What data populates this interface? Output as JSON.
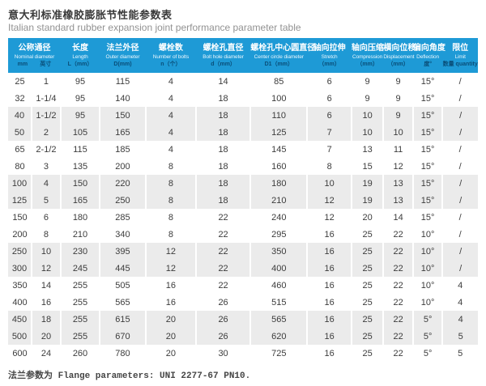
{
  "header": {
    "title_zh": "意大利标准橡胶膨胀节性能参数表",
    "title_en": "Italian standard rubber expansion joint performance parameter table"
  },
  "colors": {
    "header_bg": "#1e9ad6",
    "header_text": "#ffffff",
    "header_sub_text": "#0a4e78",
    "alt_row_bg": "#ebebeb",
    "body_text": "#3c3c3c"
  },
  "table": {
    "columns": [
      {
        "key": "nominal-diameter",
        "zh": "公称通径",
        "en": "Nominal diameter",
        "sub": [
          "mm",
          "英寸"
        ],
        "colspan": 2
      },
      {
        "key": "length",
        "zh": "长度",
        "en": "Length",
        "sub": "L（mm）"
      },
      {
        "key": "outer-diameter",
        "zh": "法兰外径",
        "en": "Outer diameter",
        "sub": "D(mm)"
      },
      {
        "key": "number-of-bolts",
        "zh": "螺栓数",
        "en": "Number of bolts",
        "sub": "n（个）"
      },
      {
        "key": "bolt-hole-diameter",
        "zh": "螺栓孔直径",
        "en": "Bolt hole diameter",
        "sub": "d（mm）"
      },
      {
        "key": "center-circle-diameter",
        "zh": "螺栓孔中心圆直径",
        "en": "Center circle diameter",
        "sub": "D1（mm）"
      },
      {
        "key": "stretch",
        "zh": "轴向拉伸",
        "en": "Stretch",
        "sub": "（mm）"
      },
      {
        "key": "compression",
        "zh": "轴向压缩",
        "en": "Compression",
        "sub": "（mm）"
      },
      {
        "key": "displacement",
        "zh": "横向位移",
        "en": "Displacement",
        "sub": "（mm）"
      },
      {
        "key": "deflection",
        "zh": "偏向角度",
        "en": "Deflection",
        "sub": "度°"
      },
      {
        "key": "limit",
        "zh": "限位",
        "en": "Limit",
        "sub": "数量 quantity"
      }
    ],
    "rows": [
      [
        "25",
        "1",
        "95",
        "115",
        "4",
        "14",
        "85",
        "6",
        "9",
        "9",
        "15°",
        "/"
      ],
      [
        "32",
        "1-1/4",
        "95",
        "140",
        "4",
        "18",
        "100",
        "6",
        "9",
        "9",
        "15°",
        "/"
      ],
      [
        "40",
        "1-1/2",
        "95",
        "150",
        "4",
        "18",
        "110",
        "6",
        "10",
        "9",
        "15°",
        "/"
      ],
      [
        "50",
        "2",
        "105",
        "165",
        "4",
        "18",
        "125",
        "7",
        "10",
        "10",
        "15°",
        "/"
      ],
      [
        "65",
        "2-1/2",
        "115",
        "185",
        "4",
        "18",
        "145",
        "7",
        "13",
        "11",
        "15°",
        "/"
      ],
      [
        "80",
        "3",
        "135",
        "200",
        "8",
        "18",
        "160",
        "8",
        "15",
        "12",
        "15°",
        "/"
      ],
      [
        "100",
        "4",
        "150",
        "220",
        "8",
        "18",
        "180",
        "10",
        "19",
        "13",
        "15°",
        "/"
      ],
      [
        "125",
        "5",
        "165",
        "250",
        "8",
        "18",
        "210",
        "12",
        "19",
        "13",
        "15°",
        "/"
      ],
      [
        "150",
        "6",
        "180",
        "285",
        "8",
        "22",
        "240",
        "12",
        "20",
        "14",
        "15°",
        "/"
      ],
      [
        "200",
        "8",
        "210",
        "340",
        "8",
        "22",
        "295",
        "16",
        "25",
        "22",
        "10°",
        "/"
      ],
      [
        "250",
        "10",
        "230",
        "395",
        "12",
        "22",
        "350",
        "16",
        "25",
        "22",
        "10°",
        "/"
      ],
      [
        "300",
        "12",
        "245",
        "445",
        "12",
        "22",
        "400",
        "16",
        "25",
        "22",
        "10°",
        "/"
      ],
      [
        "350",
        "14",
        "255",
        "505",
        "16",
        "22",
        "460",
        "16",
        "25",
        "22",
        "10°",
        "4"
      ],
      [
        "400",
        "16",
        "255",
        "565",
        "16",
        "26",
        "515",
        "16",
        "25",
        "22",
        "10°",
        "4"
      ],
      [
        "450",
        "18",
        "255",
        "615",
        "20",
        "26",
        "565",
        "16",
        "25",
        "22",
        "5°",
        "4"
      ],
      [
        "500",
        "20",
        "255",
        "670",
        "20",
        "26",
        "620",
        "16",
        "25",
        "22",
        "5°",
        "5"
      ],
      [
        "600",
        "24",
        "260",
        "780",
        "20",
        "30",
        "725",
        "16",
        "25",
        "22",
        "5°",
        "5"
      ]
    ],
    "stripe_pattern": "rows grouped in pairs: 2 white, 2 gray, repeating"
  },
  "footer": {
    "note": "法兰参数为 Flange parameters: UNI 2277-67 PN10."
  }
}
